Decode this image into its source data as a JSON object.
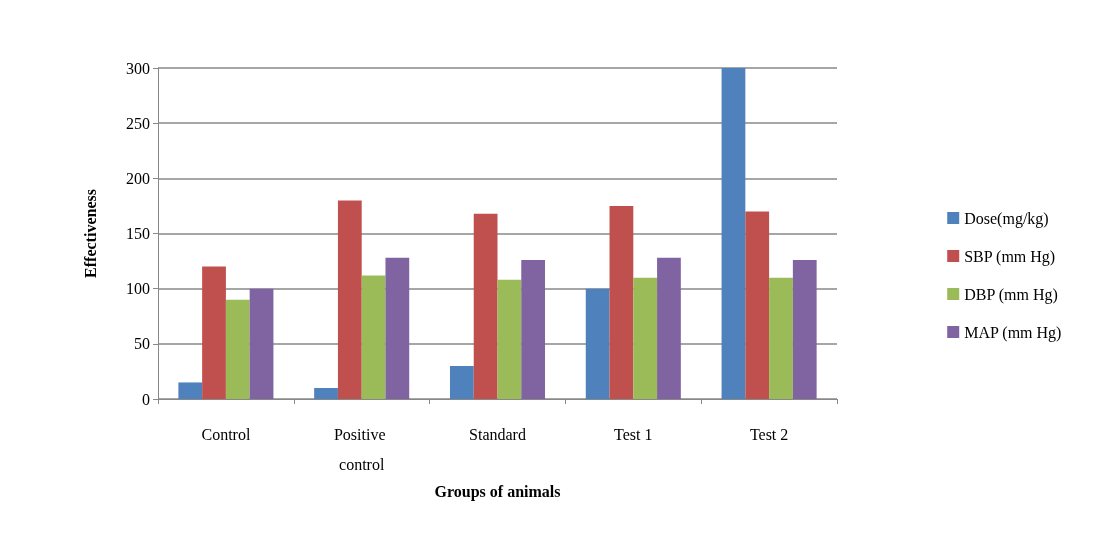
{
  "chart_data": {
    "type": "bar",
    "xlabel": "Groups of animals",
    "ylabel": "Effectiveness",
    "categories": [
      "Control",
      "Positive control",
      "Standard",
      "Test 1",
      "Test 2"
    ],
    "series": [
      {
        "name": "Dose(mg/kg)",
        "color": "#4f81bd",
        "values": [
          15,
          10,
          30,
          100,
          300
        ]
      },
      {
        "name": "SBP (mm Hg)",
        "color": "#c0504d",
        "values": [
          120,
          180,
          168,
          175,
          170
        ]
      },
      {
        "name": "DBP (mm Hg)",
        "color": "#9bbb59",
        "values": [
          90,
          112,
          108,
          110,
          110
        ]
      },
      {
        "name": "MAP (mm Hg)",
        "color": "#8064a2",
        "values": [
          100,
          128,
          126,
          128,
          126
        ]
      }
    ],
    "ylim": [
      0,
      300
    ],
    "yticks": [
      0,
      50,
      100,
      150,
      200,
      250,
      300
    ],
    "grid": "y",
    "legend": "right"
  }
}
